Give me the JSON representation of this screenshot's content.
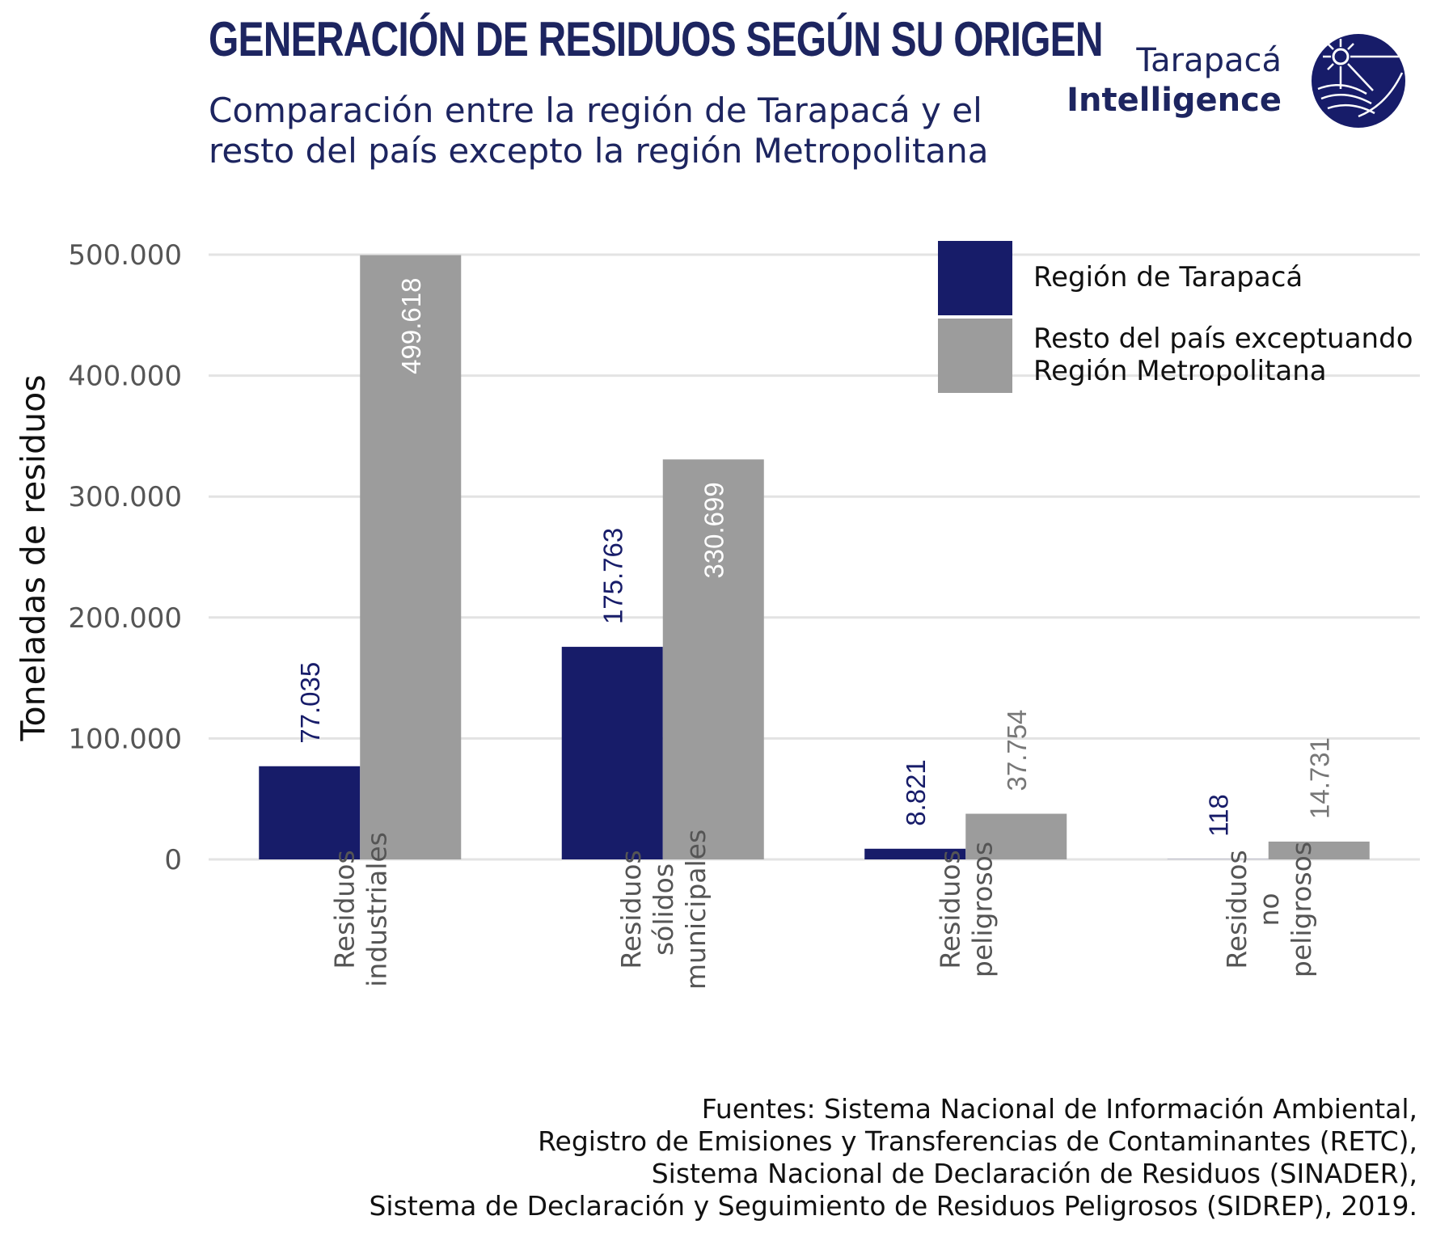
{
  "title": "GENERACIÓN DE RESIDUOS SEGÚN SU ORIGEN",
  "subtitle_lines": [
    "Comparación entre la región de Tarapacá y el",
    "resto del país excepto la región Metropolitana"
  ],
  "logo": {
    "line1": "Tarapacá",
    "line2": "Intelligence",
    "icon": "sun-sea-globe-icon"
  },
  "sources_lines": [
    "Fuentes: Sistema Nacional de Información Ambiental,",
    "Registro de Emisiones y Transferencias de Contaminantes (RETC),",
    "Sistema Nacional de Declaración de Residuos (SINADER),",
    "Sistema de Declaración y Seguimiento de Residuos Peligrosos (SIDREP), 2019."
  ],
  "colors": {
    "title": "#1d2560",
    "tarapaca": "#171c69",
    "resto": "#9c9c9c",
    "grid": "#e3e3e3",
    "tick": "#555555"
  },
  "chart_data": {
    "type": "bar",
    "ylabel": "Toneladas de residuos",
    "xlabel": "",
    "ylim": [
      0,
      500000
    ],
    "yticks": [
      0,
      100000,
      200000,
      300000,
      400000,
      500000
    ],
    "ytick_labels": [
      "0",
      "100.000",
      "200.000",
      "300.000",
      "400.000",
      "500.000"
    ],
    "grid": true,
    "legend_position": "top-right",
    "categories": [
      [
        "Residuos",
        "industriales"
      ],
      [
        "Residuos",
        "sólidos",
        "municipales"
      ],
      [
        "Residuos",
        "peligrosos"
      ],
      [
        "Residuos",
        "no",
        "peligrosos"
      ]
    ],
    "series": [
      {
        "name": "Región de Tarapacá",
        "color": "#171c69",
        "values": [
          77035,
          175763,
          8821,
          118
        ],
        "labels": [
          "77.035",
          "175.763",
          "8.821",
          "118"
        ]
      },
      {
        "name": "Resto del país exceptuando Región Metropolitana",
        "legend_lines": [
          "Resto del país exceptuando",
          "Región Metropolitana"
        ],
        "color": "#9c9c9c",
        "values": [
          499618,
          330699,
          37754,
          14731
        ],
        "labels": [
          "499.618",
          "330.699",
          "37.754",
          "14.731"
        ]
      }
    ]
  }
}
